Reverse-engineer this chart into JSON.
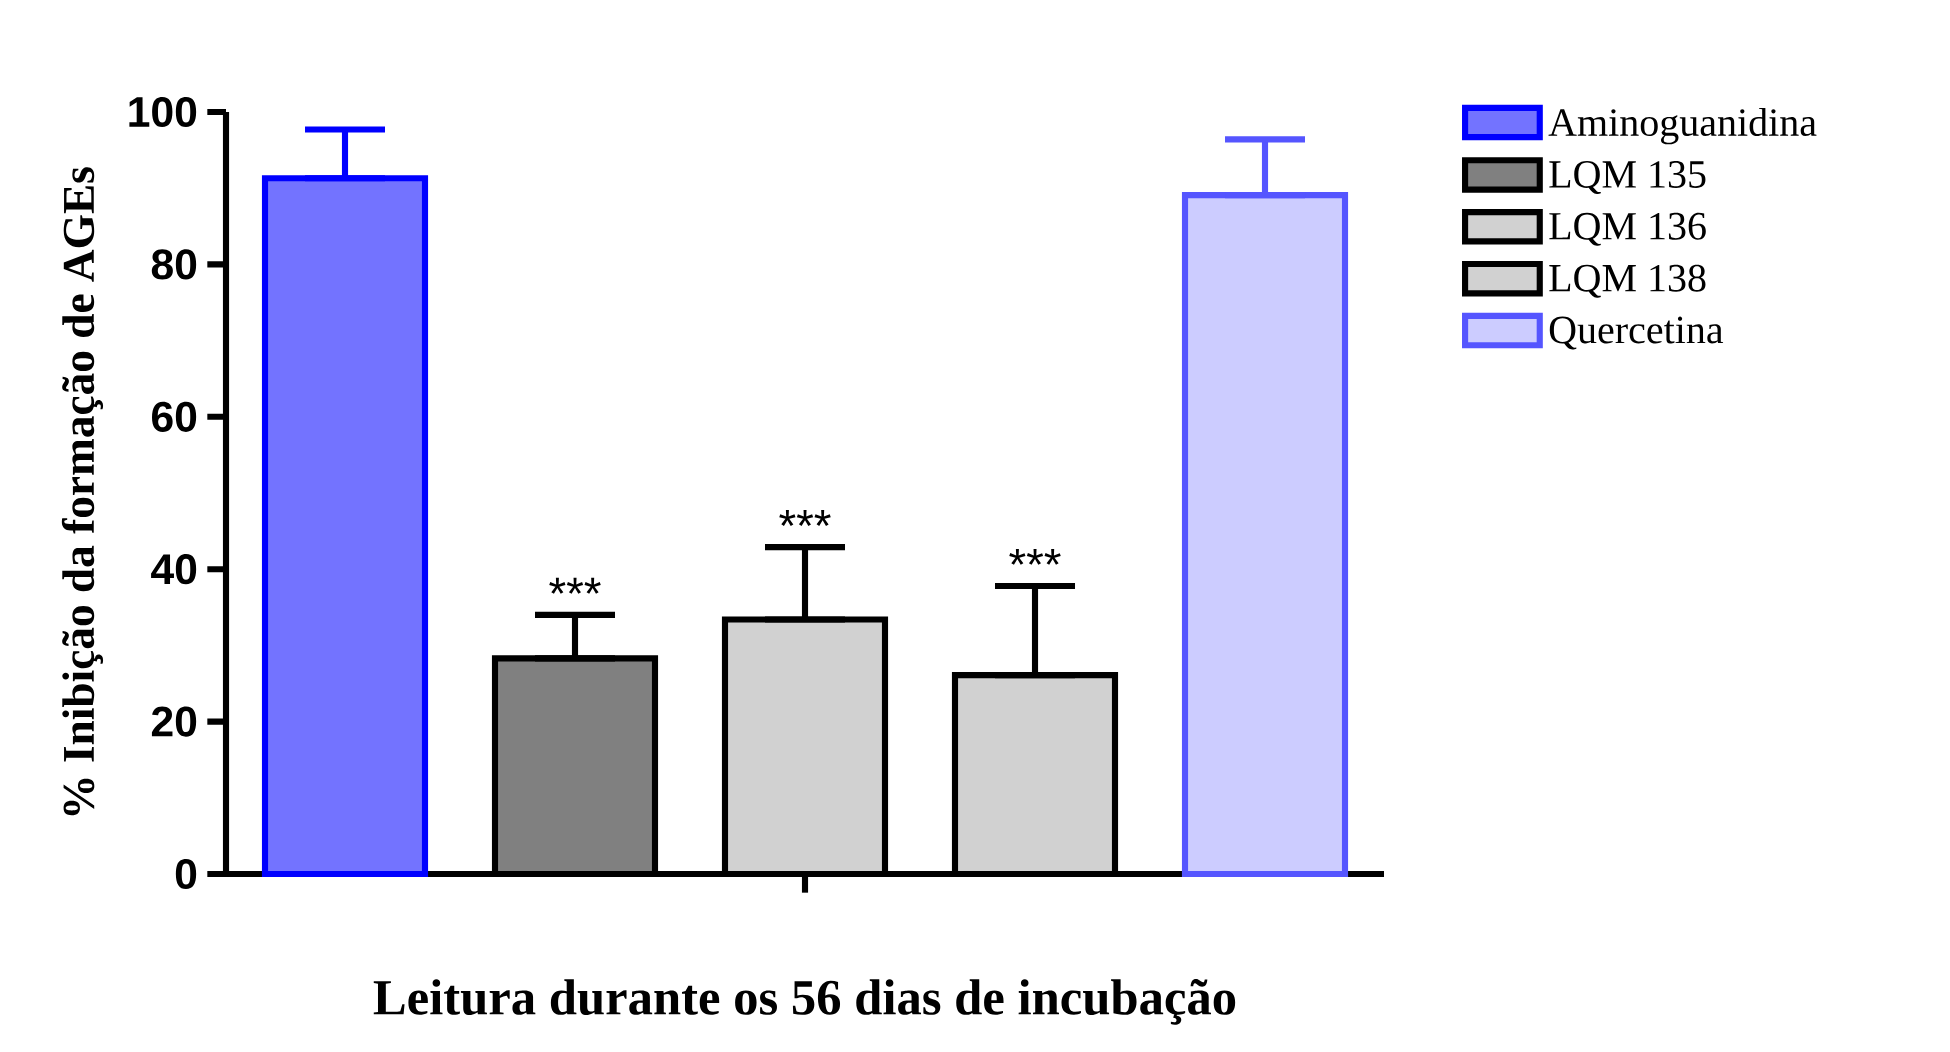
{
  "chart_data": {
    "type": "bar",
    "xlabel": "Leitura durante os 56 dias de incubação",
    "ylabel": "% Inibição da formação de AGEs",
    "categories": [
      null
    ],
    "series": [
      {
        "name": "Aminoguanidina",
        "color": "#0000ff",
        "values": [
          91.3
        ],
        "errors": [
          [
            91.3,
            97.7
          ]
        ]
      },
      {
        "name": "LQM 135",
        "color": "#000000",
        "values": [
          28.3
        ],
        "errors": [
          [
            28.3,
            34.0
          ]
        ]
      },
      {
        "name": "LQM 136",
        "color": "#000000",
        "values": [
          33.4
        ],
        "errors": [
          [
            33.4,
            42.9
          ]
        ]
      },
      {
        "name": "LQM 138",
        "color": "#000000",
        "values": [
          26.1
        ],
        "errors": [
          [
            26.1,
            37.8
          ]
        ]
      },
      {
        "name": "Quercetina",
        "color": "#5555ff",
        "values": [
          89.1
        ],
        "errors": [
          [
            89.1,
            96.4
          ]
        ]
      }
    ],
    "annotations": [
      "***",
      "***",
      "***"
    ],
    "ylim": [
      0,
      100
    ],
    "yticks": [
      0,
      20,
      40,
      60,
      80,
      100
    ],
    "legend": "top right"
  }
}
